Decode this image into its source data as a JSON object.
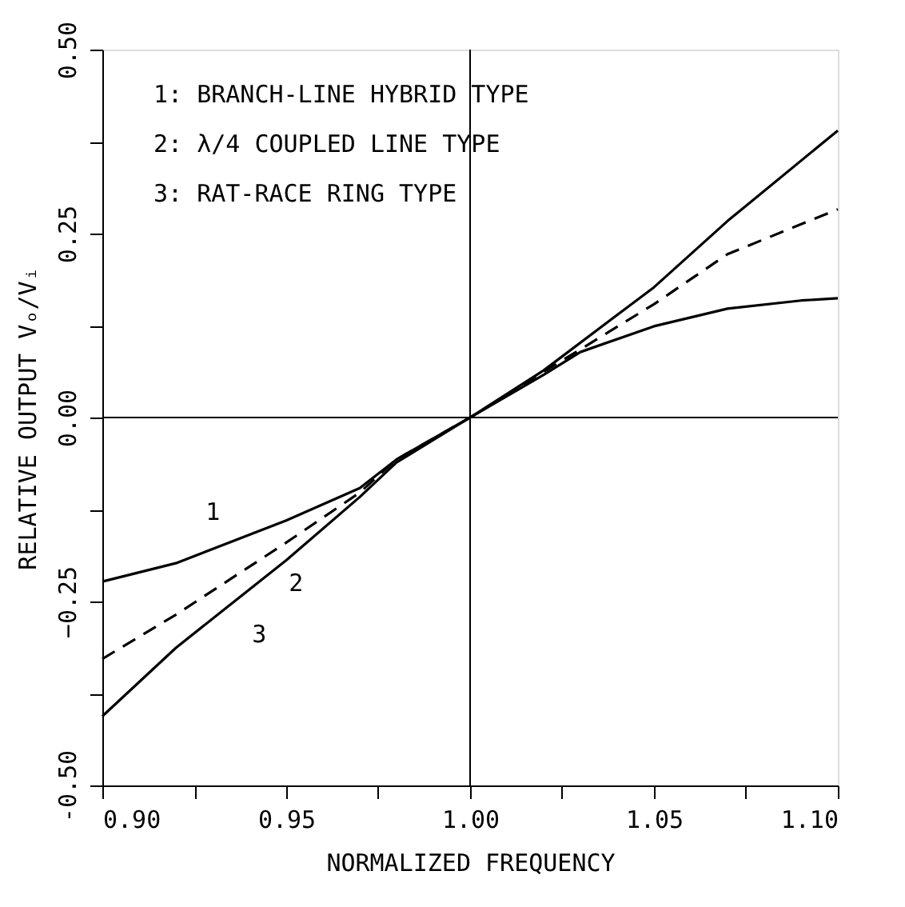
{
  "chart_data": {
    "type": "line",
    "xlabel": "NORMALIZED FREQUENCY",
    "ylabel": "RELATIVE OUTPUT  Vₒ/Vᵢ",
    "x": [
      0.9,
      0.92,
      0.95,
      0.97,
      0.98,
      1.0,
      1.02,
      1.03,
      1.05,
      1.07,
      1.09,
      1.1
    ],
    "series": [
      {
        "color": "#000000",
        "line_style": "solid",
        "values": [
          -0.223,
          -0.198,
          -0.14,
          -0.096,
          -0.057,
          0,
          0.058,
          0.089,
          0.124,
          0.148,
          0.159,
          0.162
        ]
      },
      {
        "color": "#000000",
        "line_style": "dashed",
        "x": [
          0.9,
          0.92,
          0.95,
          0.97,
          0.98,
          1.0,
          1.02,
          1.05,
          1.07,
          1.1
        ],
        "values": [
          -0.328,
          -0.268,
          -0.17,
          -0.102,
          -0.057,
          0,
          0.062,
          0.154,
          0.222,
          0.283
        ]
      },
      {
        "color": "#000000",
        "line_style": "solid",
        "x": [
          0.9,
          0.92,
          0.95,
          0.97,
          0.98,
          1.0,
          1.02,
          1.05,
          1.07,
          1.1
        ],
        "values": [
          -0.406,
          -0.313,
          -0.194,
          -0.108,
          -0.061,
          0,
          0.064,
          0.177,
          0.267,
          0.39
        ]
      }
    ],
    "xlim": [
      0.9,
      1.1
    ],
    "xticks": [
      {
        "value": 0.9,
        "label": "0.90"
      },
      {
        "value": 0.925,
        "label": null
      },
      0.95,
      {
        "value": 0.975,
        "label": null
      },
      {
        "value": 1,
        "label": "1.00"
      },
      {
        "value": 1.025,
        "label": null
      },
      1.05,
      {
        "value": 1.075,
        "label": null
      },
      {
        "value": 1.1,
        "label": "1.10"
      }
    ],
    "ylim": [
      -0.5,
      0.5
    ],
    "yticks": [
      {
        "value": -0.5,
        "label": "-0.50"
      },
      {
        "value": -0.375,
        "label": null
      },
      -0.25,
      {
        "value": -0.125,
        "label": null
      },
      {
        "value": 0,
        "label": "0.00"
      },
      {
        "value": 0.125,
        "label": null
      },
      0.25,
      {
        "value": 0.375,
        "label": null
      },
      {
        "value": 0.5,
        "label": "0.50"
      }
    ],
    "ref_lines": [
      {
        "axis": "x",
        "value": 1.0,
        "color": "#000000"
      },
      {
        "axis": "y",
        "value": 0.0,
        "color": "#000000"
      }
    ],
    "annotations": [
      "1: BRANCH-LINE HYBRID TYPE",
      "2: λ/4 COUPLED LINE TYPE",
      "3: RAT-RACE RING TYPE",
      {
        "text": "1",
        "x": 0.937,
        "y": -0.159
      },
      {
        "text": "2",
        "x": 0.944,
        "y": -0.19
      },
      {
        "text": "3",
        "x": 0.934,
        "y": -0.26
      }
    ],
    "grid": false
  }
}
